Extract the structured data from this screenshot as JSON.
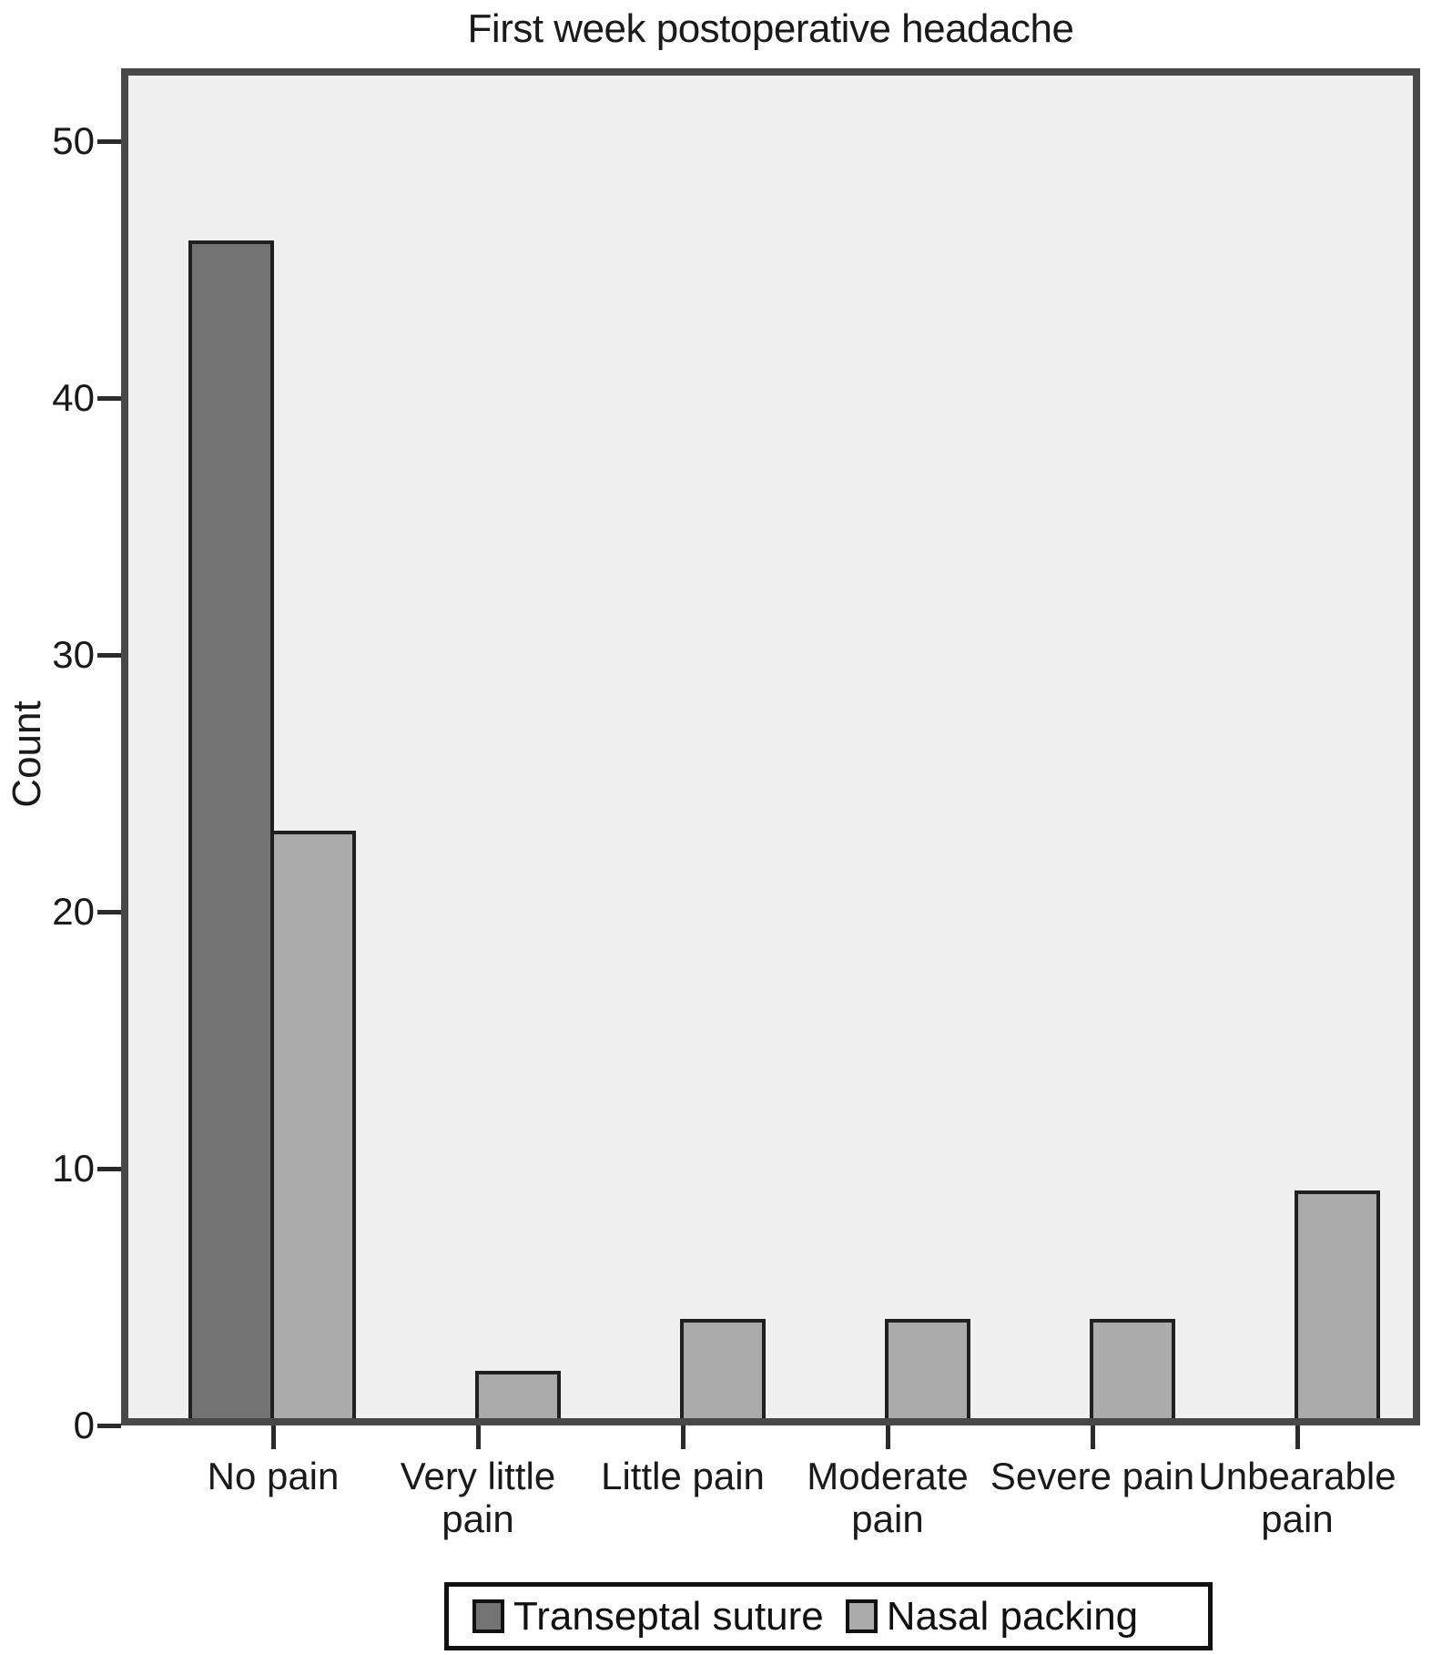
{
  "chart_data": {
    "type": "bar",
    "title": "First week postoperative headache",
    "xlabel": "",
    "ylabel": "Count",
    "categories": [
      "No pain",
      "Very little pain",
      "Little pain",
      "Moderate pain",
      "Severe pain",
      "Unbearable pain"
    ],
    "category_label_lines": [
      [
        "No pain"
      ],
      [
        "Very little",
        "pain"
      ],
      [
        "Little pain"
      ],
      [
        "Moderate",
        "pain"
      ],
      [
        "Severe pain"
      ],
      [
        "Unbearable",
        "pain"
      ]
    ],
    "series": [
      {
        "name": "Transeptal suture",
        "color": "#737373",
        "values": [
          46,
          0,
          0,
          0,
          0,
          0
        ]
      },
      {
        "name": "Nasal packing",
        "color": "#ababab",
        "values": [
          23,
          2,
          4,
          4,
          4,
          9
        ]
      }
    ],
    "ylim": [
      0,
      50
    ],
    "yticks": [
      0,
      10,
      20,
      30,
      40,
      50
    ],
    "grid": false,
    "legend_position": "bottom",
    "colors": {
      "plot_background": "#f0f0f0",
      "frame": "#484848",
      "bar_outline": "#202020",
      "text": "#1a1a1a"
    }
  }
}
